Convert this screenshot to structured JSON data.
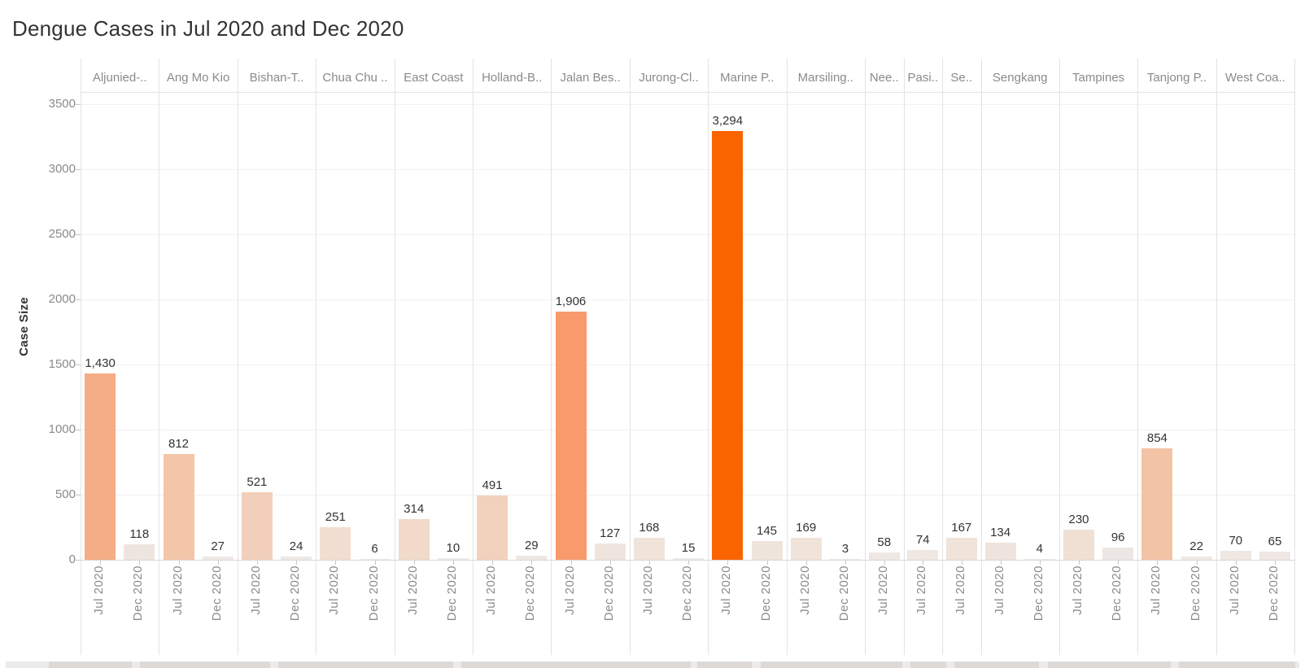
{
  "title": "Dengue Cases in Jul 2020 and Dec 2020",
  "colors": {
    "title_text": "#333333",
    "axis_text": "#8A8A8A",
    "header_text": "#8A8A8A",
    "value_text": "#333333",
    "gridline": "#F1F1F1",
    "separator": "#E3E3E3",
    "baseline": "#D7D7D7",
    "tick_mark": "#C6C6C6",
    "strip_base": "#EDEBE9",
    "strip_segment": "#DDD9D6",
    "max_bar": "#FA6400",
    "min_bar": "#EDE9E7"
  },
  "chart_data": {
    "type": "bar",
    "title": "Dengue Cases in Jul 2020 and Dec 2020",
    "xlabel": "",
    "ylabel": "Case Size",
    "ylim": [
      0,
      3500
    ],
    "y_ticks": [
      0,
      500,
      1000,
      1500,
      2000,
      2500,
      3000,
      3500
    ],
    "grid": "horizontal",
    "legend": "none",
    "series": [
      "Jul 2020",
      "Dec 2020"
    ],
    "regions": [
      {
        "name": "Aljunied-..",
        "bars": [
          {
            "series": "Jul 2020",
            "value": 1430,
            "label": "1,430",
            "color": "#F5AD85"
          },
          {
            "series": "Dec 2020",
            "value": 118,
            "label": "118",
            "color": "#EFE5DF"
          }
        ]
      },
      {
        "name": "Ang Mo Kio",
        "bars": [
          {
            "series": "Jul 2020",
            "value": 812,
            "label": "812",
            "color": "#F3C5A9"
          },
          {
            "series": "Dec 2020",
            "value": 27,
            "label": "27",
            "color": "#EEE8E5"
          }
        ]
      },
      {
        "name": "Bishan-T..",
        "bars": [
          {
            "series": "Jul 2020",
            "value": 521,
            "label": "521",
            "color": "#F2CFBA"
          },
          {
            "series": "Dec 2020",
            "value": 24,
            "label": "24",
            "color": "#EEE8E5"
          }
        ]
      },
      {
        "name": "Chua Chu ..",
        "bars": [
          {
            "series": "Jul 2020",
            "value": 251,
            "label": "251",
            "color": "#F1DED1"
          },
          {
            "series": "Dec 2020",
            "value": 6,
            "label": "6",
            "color": "#EDE9E7"
          }
        ]
      },
      {
        "name": "East Coast",
        "bars": [
          {
            "series": "Jul 2020",
            "value": 314,
            "label": "314",
            "color": "#F1DACA"
          },
          {
            "series": "Dec 2020",
            "value": 10,
            "label": "10",
            "color": "#EDE9E6"
          }
        ]
      },
      {
        "name": "Holland-B..",
        "bars": [
          {
            "series": "Jul 2020",
            "value": 491,
            "label": "491",
            "color": "#F2D1BD"
          },
          {
            "series": "Dec 2020",
            "value": 29,
            "label": "29",
            "color": "#EEE8E5"
          }
        ]
      },
      {
        "name": "Jalan Bes..",
        "bars": [
          {
            "series": "Jul 2020",
            "value": 1906,
            "label": "1,906",
            "color": "#F89A6B"
          },
          {
            "series": "Dec 2020",
            "value": 127,
            "label": "127",
            "color": "#EFE5DE"
          }
        ]
      },
      {
        "name": "Jurong-Cl..",
        "bars": [
          {
            "series": "Jul 2020",
            "value": 168,
            "label": "168",
            "color": "#F0E3D9"
          },
          {
            "series": "Dec 2020",
            "value": 15,
            "label": "15",
            "color": "#EDE9E6"
          }
        ]
      },
      {
        "name": "Marine P..",
        "bars": [
          {
            "series": "Jul 2020",
            "value": 3294,
            "label": "3,294",
            "color": "#FA6400"
          },
          {
            "series": "Dec 2020",
            "value": 145,
            "label": "145",
            "color": "#EFE4DC"
          }
        ]
      },
      {
        "name": "Marsiling..",
        "bars": [
          {
            "series": "Jul 2020",
            "value": 169,
            "label": "169",
            "color": "#F0E3D9"
          },
          {
            "series": "Dec 2020",
            "value": 3,
            "label": "3",
            "color": "#EDE9E7"
          }
        ]
      },
      {
        "name": "Nee..",
        "bars": [
          {
            "series": "Jul 2020",
            "value": 58,
            "label": "58",
            "color": "#EEE7E3"
          }
        ]
      },
      {
        "name": "Pasi..",
        "bars": [
          {
            "series": "Jul 2020",
            "value": 74,
            "label": "74",
            "color": "#EEE7E2"
          }
        ]
      },
      {
        "name": "Se..",
        "bars": [
          {
            "series": "Jul 2020",
            "value": 167,
            "label": "167",
            "color": "#F0E3DA"
          }
        ]
      },
      {
        "name": "Sengkang",
        "bars": [
          {
            "series": "Jul 2020",
            "value": 134,
            "label": "134",
            "color": "#EFE4DD"
          },
          {
            "series": "Dec 2020",
            "value": 4,
            "label": "4",
            "color": "#EDE9E7"
          }
        ]
      },
      {
        "name": "Tampines",
        "bars": [
          {
            "series": "Jul 2020",
            "value": 230,
            "label": "230",
            "color": "#F0E0D4"
          },
          {
            "series": "Dec 2020",
            "value": 96,
            "label": "96",
            "color": "#ECE7E4"
          }
        ]
      },
      {
        "name": "Tanjong P..",
        "bars": [
          {
            "series": "Jul 2020",
            "value": 854,
            "label": "854",
            "color": "#F3C3A6"
          },
          {
            "series": "Dec 2020",
            "value": 22,
            "label": "22",
            "color": "#EEE8E5"
          }
        ]
      },
      {
        "name": "West Coa..",
        "bars": [
          {
            "series": "Jul 2020",
            "value": 70,
            "label": "70",
            "color": "#EEE7E2"
          },
          {
            "series": "Dec 2020",
            "value": 65,
            "label": "65",
            "color": "#EEE7E3"
          }
        ]
      }
    ]
  }
}
